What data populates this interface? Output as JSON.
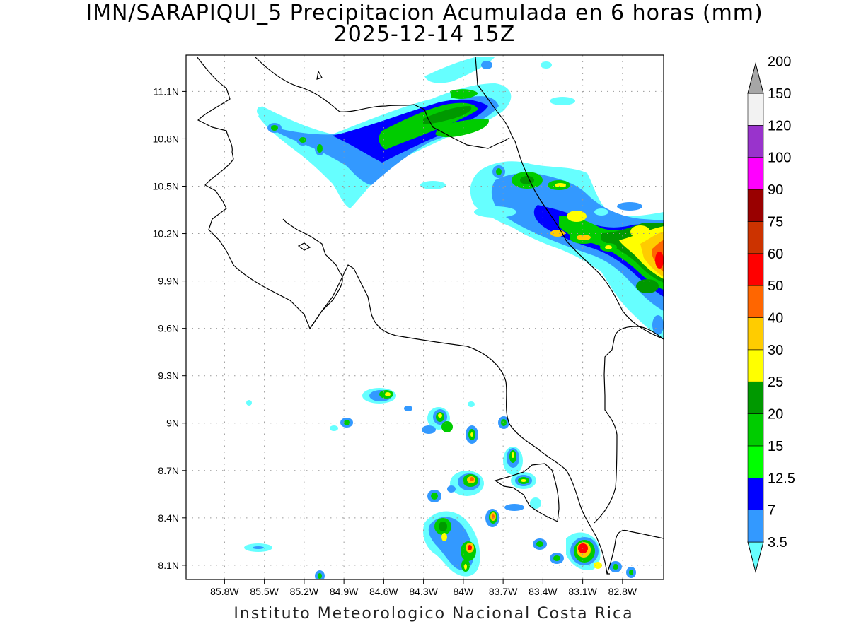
{
  "title": {
    "line1": "IMN/SARAPIQUI_5 Precipitacion Acumulada en 6 horas (mm)",
    "line2": "2025-12-14 15Z"
  },
  "footer": "Instituto Meteorologico Nacional Costa Rica",
  "map": {
    "lon_range": [
      -86.09,
      -82.49
    ],
    "lat_range": [
      8.01,
      11.33
    ],
    "lat_ticks": [
      "11.1N",
      "10.8N",
      "10.5N",
      "10.2N",
      "9.9N",
      "9.6N",
      "9.3N",
      "9N",
      "8.7N",
      "8.4N",
      "8.1N"
    ],
    "lon_ticks": [
      "85.8W",
      "85.5W",
      "85.2W",
      "84.9W",
      "84.6W",
      "84.3W",
      "84W",
      "83.7W",
      "83.4W",
      "83.1W",
      "82.8W"
    ],
    "grid": "dotted"
  },
  "colorbar": {
    "levels": [
      "3.5",
      "7",
      "12.5",
      "15",
      "20",
      "25",
      "30",
      "40",
      "50",
      "60",
      "75",
      "90",
      "100",
      "120",
      "150",
      "200"
    ],
    "colors": [
      "#66ffff",
      "#3399ff",
      "#0000ff",
      "#00ff00",
      "#00cc00",
      "#009900",
      "#ffff00",
      "#ffcc00",
      "#ff6600",
      "#ff0000",
      "#cc3300",
      "#990000",
      "#ff00ff",
      "#9933cc",
      "#f2f2f2",
      "#a6a6a6"
    ]
  }
}
